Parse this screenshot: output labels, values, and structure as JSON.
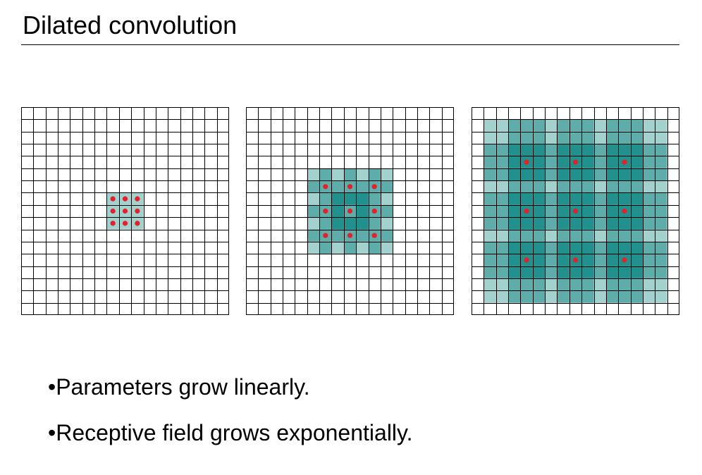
{
  "slide": {
    "title": "Dilated convolution"
  },
  "colors": {
    "light_teal": "#a3d1ce",
    "mid_teal": "#5fadaa",
    "dark_teal": "#22908c",
    "dot_red": "#e2212b",
    "grid_line": "#000000"
  },
  "diagram": {
    "grid_size": 17,
    "panels": [
      {
        "dilation": 1,
        "receptive_field_cells": 3,
        "sampled_points": [
          [
            7,
            7
          ],
          [
            8,
            7
          ],
          [
            9,
            7
          ],
          [
            7,
            8
          ],
          [
            8,
            8
          ],
          [
            9,
            8
          ],
          [
            7,
            9
          ],
          [
            8,
            9
          ],
          [
            9,
            9
          ]
        ]
      },
      {
        "dilation": 2,
        "receptive_field_cells": 7,
        "sampled_points": [
          [
            6,
            6
          ],
          [
            8,
            6
          ],
          [
            10,
            6
          ],
          [
            6,
            8
          ],
          [
            8,
            8
          ],
          [
            10,
            8
          ],
          [
            6,
            10
          ],
          [
            8,
            10
          ],
          [
            10,
            10
          ]
        ]
      },
      {
        "dilation": 4,
        "receptive_field_cells": 15,
        "sampled_points": [
          [
            4,
            4
          ],
          [
            8,
            4
          ],
          [
            12,
            4
          ],
          [
            4,
            8
          ],
          [
            8,
            8
          ],
          [
            12,
            8
          ],
          [
            4,
            12
          ],
          [
            8,
            12
          ],
          [
            12,
            12
          ]
        ]
      }
    ]
  },
  "bullets": [
    "•Parameters grow linearly.",
    "•Receptive field grows exponentially."
  ]
}
